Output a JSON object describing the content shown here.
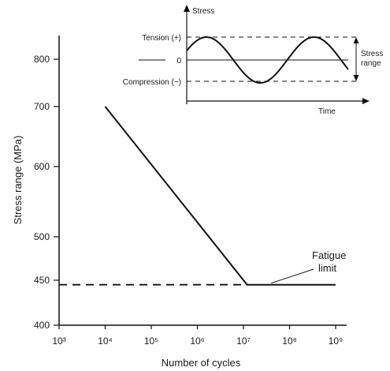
{
  "chart_data": {
    "type": "line",
    "xlabel": "Number of cycles",
    "ylabel": "Stress range (MPa)",
    "x_scale": "log",
    "xlim": [
      1000,
      1000000000
    ],
    "ylim": [
      400,
      850
    ],
    "x_ticks": [
      {
        "value": 1000,
        "label": "10³"
      },
      {
        "value": 10000,
        "label": "10⁴"
      },
      {
        "value": 100000,
        "label": "10⁵"
      },
      {
        "value": 1000000,
        "label": "10⁶"
      },
      {
        "value": 10000000,
        "label": "10⁷"
      },
      {
        "value": 100000000,
        "label": "10⁸"
      },
      {
        "value": 1000000000,
        "label": "10⁹"
      }
    ],
    "y_ticks": [
      {
        "value": 400,
        "label": "400"
      },
      {
        "value": 450,
        "label": "450"
      },
      {
        "value": 500,
        "label": "500"
      },
      {
        "value": 600,
        "label": "600"
      },
      {
        "value": 700,
        "label": "700"
      },
      {
        "value": 800,
        "label": "800"
      }
    ],
    "series": [
      {
        "style": "solid",
        "x": [
          10000,
          12000000,
          1000000000
        ],
        "y": [
          700,
          445,
          445
        ]
      }
    ],
    "reference_line": {
      "style": "dashed",
      "y": 445,
      "x": [
        1000,
        12000000
      ]
    },
    "annotation": {
      "lines": [
        "Fatigue",
        "limit"
      ],
      "target": {
        "x": 40000000,
        "y": 445
      }
    },
    "inset": {
      "type": "line",
      "ylabel": "Stress",
      "xlabel": "Time",
      "levels": [
        {
          "label": "Tension (+)",
          "value": 1
        },
        {
          "label": "0",
          "value": 0
        },
        {
          "label": "Compression (−)",
          "value": -1
        }
      ],
      "range_label": [
        "Stress",
        "range"
      ],
      "curve": "sine",
      "cycles": 1.5
    }
  }
}
